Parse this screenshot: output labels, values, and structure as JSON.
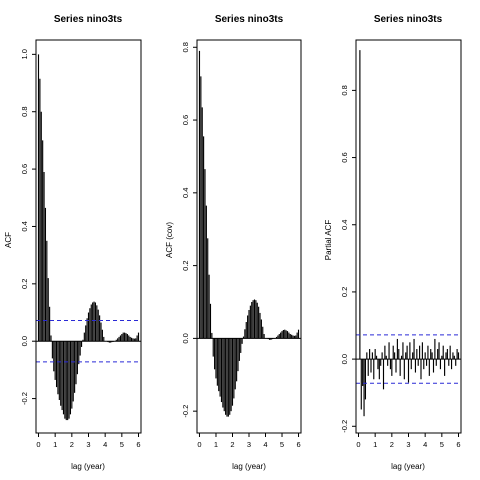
{
  "chart_data": [
    {
      "type": "bar",
      "title": "Series  nino3ts",
      "xlabel": "lag (year)",
      "ylabel": "ACF",
      "xlim": [
        -0.15,
        6.15
      ],
      "ylim": [
        -0.32,
        1.05
      ],
      "xticks": [
        0,
        1,
        2,
        3,
        4,
        5,
        6
      ],
      "yticks": [
        -0.2,
        0.0,
        0.2,
        0.4,
        0.6,
        0.8,
        1.0
      ],
      "ytick_labels": [
        "-0.2",
        "0.0",
        "0.2",
        "0.4",
        "0.6",
        "0.8",
        "1.0"
      ],
      "conf_band": [
        0.072,
        -0.072
      ],
      "lag_step": 0.08333,
      "values": [
        1.0,
        0.915,
        0.8,
        0.7,
        0.59,
        0.465,
        0.35,
        0.22,
        0.12,
        0.02,
        -0.06,
        -0.105,
        -0.135,
        -0.16,
        -0.185,
        -0.205,
        -0.225,
        -0.24,
        -0.255,
        -0.27,
        -0.275,
        -0.275,
        -0.27,
        -0.255,
        -0.235,
        -0.21,
        -0.18,
        -0.15,
        -0.115,
        -0.08,
        -0.05,
        -0.02,
        0.005,
        0.03,
        0.055,
        0.08,
        0.1,
        0.115,
        0.128,
        0.135,
        0.138,
        0.135,
        0.125,
        0.11,
        0.09,
        0.065,
        0.04,
        0.015,
        0.0,
        0.0,
        -0.003,
        -0.005,
        -0.005,
        -0.003,
        -0.002,
        0.0,
        0.005,
        0.01,
        0.015,
        0.02,
        0.025,
        0.03,
        0.03,
        0.028,
        0.025,
        0.02,
        0.015,
        0.012,
        0.01,
        0.009,
        0.01,
        0.02,
        0.03
      ]
    },
    {
      "type": "bar",
      "title": "Series  nino3ts",
      "xlabel": "lag (year)",
      "ylabel": "ACF (cov)",
      "xlim": [
        -0.15,
        6.15
      ],
      "ylim": [
        -0.26,
        0.82
      ],
      "xticks": [
        0,
        1,
        2,
        3,
        4,
        5,
        6
      ],
      "yticks": [
        -0.2,
        0.0,
        0.2,
        0.4,
        0.6,
        0.8
      ],
      "ytick_labels": [
        "-0.2",
        "0.0",
        "0.2",
        "0.4",
        "0.6",
        "0.8"
      ],
      "conf_band": null,
      "lag_step": 0.08333,
      "values": [
        0.79,
        0.72,
        0.635,
        0.555,
        0.465,
        0.365,
        0.275,
        0.175,
        0.095,
        0.015,
        -0.05,
        -0.085,
        -0.11,
        -0.13,
        -0.145,
        -0.16,
        -0.175,
        -0.19,
        -0.2,
        -0.21,
        -0.215,
        -0.215,
        -0.21,
        -0.2,
        -0.185,
        -0.165,
        -0.14,
        -0.118,
        -0.09,
        -0.062,
        -0.04,
        -0.015,
        0.005,
        0.025,
        0.045,
        0.063,
        0.078,
        0.09,
        0.1,
        0.105,
        0.107,
        0.105,
        0.098,
        0.087,
        0.07,
        0.052,
        0.032,
        0.012,
        0.0,
        0.0,
        -0.002,
        -0.004,
        -0.004,
        -0.002,
        -0.001,
        0.0,
        0.004,
        0.008,
        0.012,
        0.016,
        0.02,
        0.023,
        0.024,
        0.022,
        0.02,
        0.016,
        0.012,
        0.01,
        0.008,
        0.007,
        0.008,
        0.016,
        0.024
      ]
    },
    {
      "type": "bar",
      "title": "Series  nino3ts",
      "xlabel": "lag (year)",
      "ylabel": "Partial ACF",
      "xlim": [
        -0.15,
        6.15
      ],
      "ylim": [
        -0.22,
        0.95
      ],
      "xticks": [
        0,
        1,
        2,
        3,
        4,
        5,
        6
      ],
      "yticks": [
        -0.2,
        0.0,
        0.2,
        0.4,
        0.6,
        0.8
      ],
      "ytick_labels": [
        "-0.2",
        "0.0",
        "0.2",
        "0.4",
        "0.6",
        "0.8"
      ],
      "conf_band": [
        0.072,
        -0.072
      ],
      "lag_step": 0.08333,
      "lag_start": 0.08333,
      "values": [
        0.92,
        -0.15,
        -0.08,
        -0.17,
        -0.12,
        0.02,
        -0.05,
        0.03,
        -0.04,
        0.02,
        -0.06,
        0.03,
        0.01,
        -0.03,
        -0.06,
        -0.02,
        0.02,
        -0.09,
        0.04,
        0.01,
        -0.02,
        0.05,
        -0.03,
        -0.05,
        0.04,
        0.02,
        -0.04,
        0.06,
        0.03,
        -0.05,
        0.01,
        0.05,
        -0.06,
        0.02,
        0.04,
        -0.07,
        0.05,
        -0.03,
        0.02,
        0.06,
        -0.04,
        0.03,
        -0.02,
        0.04,
        -0.06,
        0.05,
        -0.03,
        0.02,
        -0.02,
        0.04,
        -0.05,
        0.03,
        0.02,
        -0.04,
        0.06,
        -0.02,
        0.03,
        0.05,
        -0.03,
        0.01,
        0.04,
        -0.05,
        0.02,
        0.03,
        -0.02,
        0.04,
        -0.03,
        0.02,
        0.01,
        -0.02,
        0.03,
        0.02
      ]
    }
  ]
}
